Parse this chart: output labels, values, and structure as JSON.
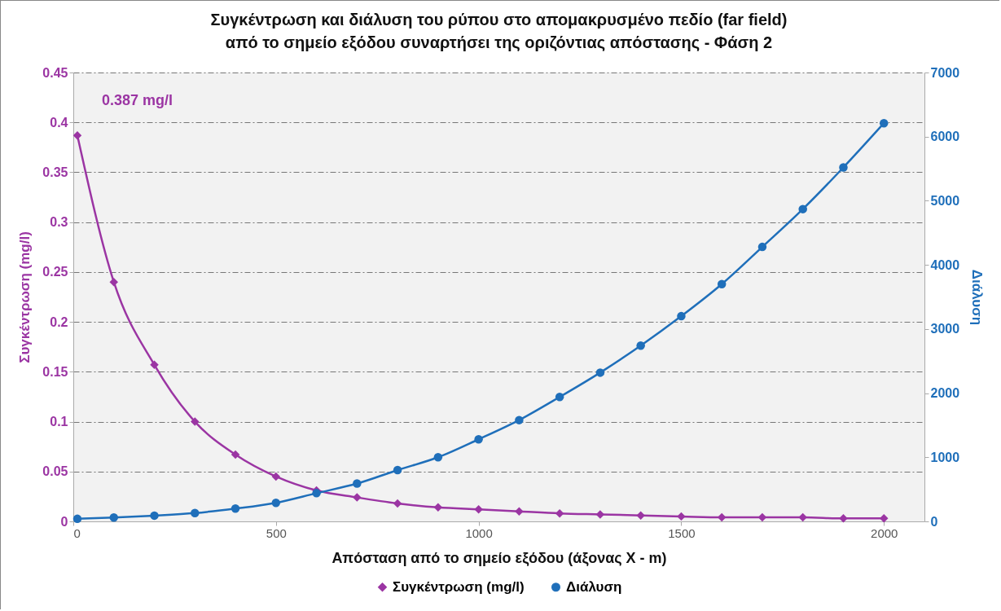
{
  "chart_data": {
    "type": "line",
    "title": "Συγκέντρωση και διάλυση του ρύπου στο απομακρυσμένο πεδίο (far field) από το σημείο εξόδου συναρτήσει της οριζόντιας απόστασης - Φάση 2",
    "xlabel": "Απόσταση από το σημείο εξόδου (άξονας X - m)",
    "ylabel": "Συγκέντρωση (mg/l)",
    "y2label": "Διάλυση",
    "x": [
      10,
      100,
      200,
      300,
      400,
      500,
      600,
      700,
      800,
      900,
      1000,
      1100,
      1200,
      1300,
      1400,
      1500,
      1600,
      1700,
      1800,
      1900,
      2000
    ],
    "series": [
      {
        "name": "Συγκέντρωση (mg/l)",
        "color": "#9b35a3",
        "marker": "diamond",
        "values": [
          0.387,
          0.24,
          0.157,
          0.1,
          0.067,
          0.045,
          0.031,
          0.024,
          0.018,
          0.014,
          0.012,
          0.01,
          0.008,
          0.007,
          0.006,
          0.005,
          0.004,
          0.004,
          0.004,
          0.003,
          0.003
        ]
      },
      {
        "name": "Διάλυση",
        "color": "#1f6fba",
        "marker": "circle",
        "axis": "y2",
        "values": [
          40,
          60,
          90,
          130,
          200,
          290,
          440,
          590,
          800,
          1000,
          1280,
          1580,
          1940,
          2320,
          2740,
          3200,
          3700,
          4280,
          4870,
          5520,
          6210
        ]
      }
    ],
    "xlim": [
      0,
      2100
    ],
    "xticks": [
      0,
      500,
      1000,
      1500,
      2000
    ],
    "ylim": [
      0,
      0.45
    ],
    "yticks": [
      0,
      0.05,
      0.1,
      0.15,
      0.2,
      0.25,
      0.3,
      0.35,
      0.4,
      0.45
    ],
    "y2lim": [
      0,
      7000
    ],
    "y2ticks": [
      0,
      1000,
      2000,
      3000,
      4000,
      5000,
      6000,
      7000
    ],
    "annotations": [
      {
        "text": "0.387 mg/l",
        "x": 10,
        "y": 0.387
      }
    ],
    "grid": "y",
    "legend": "bottom"
  }
}
